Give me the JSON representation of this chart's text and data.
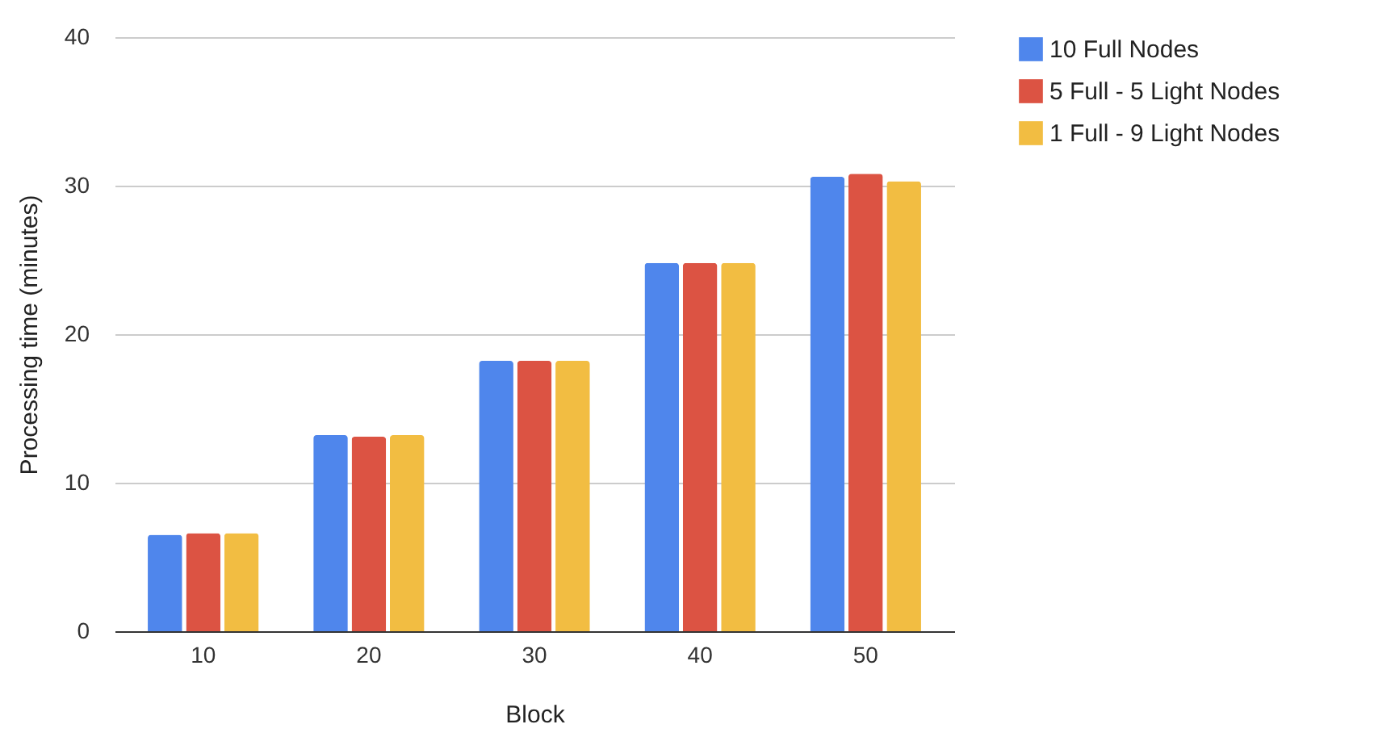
{
  "chart_data": {
    "type": "bar",
    "xlabel": "Block",
    "ylabel": "Processing time (minutes)",
    "categories": [
      "10",
      "20",
      "30",
      "40",
      "50"
    ],
    "series": [
      {
        "name": "10 Full Nodes",
        "color": "#4f86ec",
        "values": [
          6.5,
          13.2,
          18.2,
          24.8,
          30.6
        ]
      },
      {
        "name": "5 Full - 5 Light Nodes",
        "color": "#dc5343",
        "values": [
          6.6,
          13.1,
          18.2,
          24.8,
          30.8
        ]
      },
      {
        "name": "1 Full - 9 Light Nodes",
        "color": "#f2bd42",
        "values": [
          6.6,
          13.2,
          18.2,
          24.8,
          30.3
        ]
      }
    ],
    "ylim": [
      0,
      40
    ],
    "yticks": [
      0,
      10,
      20,
      30,
      40
    ],
    "grid": "y",
    "legend": "top right"
  }
}
